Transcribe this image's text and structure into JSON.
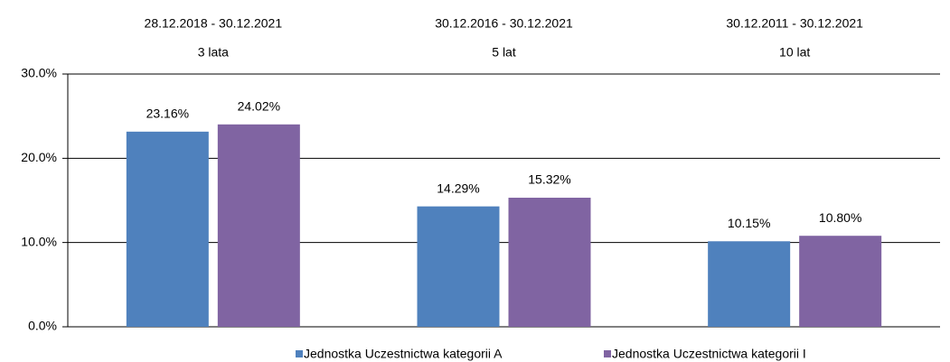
{
  "chart_data": {
    "type": "bar",
    "categories": [
      "3 lata",
      "5 lat",
      "10 lat"
    ],
    "category_dates": [
      "28.12.2018 - 30.12.2021",
      "30.12.2016 - 30.12.2021",
      "30.12.2011 - 30.12.2021"
    ],
    "series": [
      {
        "name": "Jednostka Uczestnictwa kategorii A",
        "color": "#4f81bd",
        "values": [
          23.16,
          14.29,
          10.15
        ],
        "value_labels": [
          "23.16%",
          "14.29%",
          "10.15%"
        ]
      },
      {
        "name": "Jednostka Uczestnictwa kategorii I",
        "color": "#8064a2",
        "values": [
          24.02,
          15.32,
          10.8
        ],
        "value_labels": [
          "24.02%",
          "15.32%",
          "10.80%"
        ]
      }
    ],
    "ylim": [
      0,
      30
    ],
    "yticks": [
      {
        "value": 0,
        "label": "0.0%"
      },
      {
        "value": 10,
        "label": "10.0%"
      },
      {
        "value": 20,
        "label": "20.0%"
      },
      {
        "value": 30,
        "label": "30.0%"
      }
    ],
    "grid": true,
    "legend": "bottom"
  }
}
